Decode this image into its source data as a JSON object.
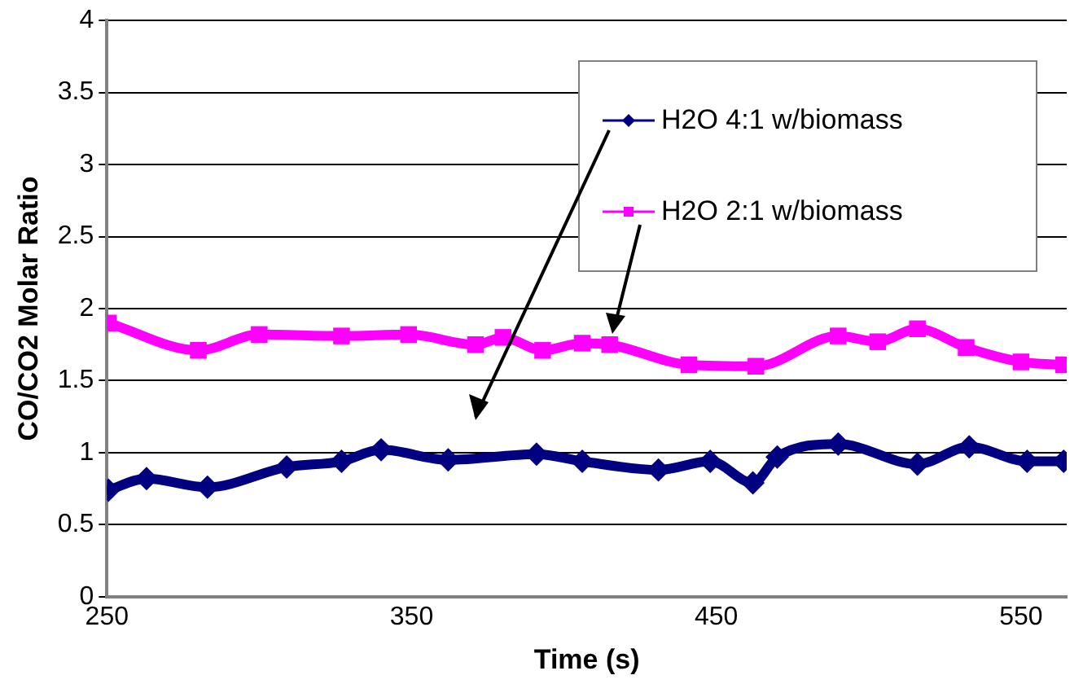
{
  "chart_data": {
    "type": "line",
    "xlabel": "Time (s)",
    "ylabel": "CO/CO2 Molar Ratio",
    "xlim": [
      250,
      565
    ],
    "xticks": [
      250,
      350,
      450,
      550
    ],
    "ylim": [
      0,
      4
    ],
    "yticks": [
      0,
      0.5,
      1,
      1.5,
      2,
      2.5,
      3,
      3.5,
      4
    ],
    "grid": "y",
    "legend": "top right",
    "line_style": "solid",
    "series": [
      {
        "name": "H2O 4:1 w/biomass",
        "color": "#000080",
        "marker": "diamond",
        "x": [
          250.5,
          263,
          283,
          309,
          327,
          340,
          362,
          391,
          406,
          431,
          448,
          462,
          470,
          490,
          516,
          533,
          552,
          564
        ],
        "values": [
          0.74,
          0.82,
          0.76,
          0.9,
          0.94,
          1.02,
          0.95,
          0.99,
          0.94,
          0.88,
          0.94,
          0.79,
          0.97,
          1.06,
          0.92,
          1.04,
          0.94,
          0.94
        ]
      },
      {
        "name": "H2O 2:1 w/biomass",
        "color": "#ff00ff",
        "marker": "square",
        "x": [
          250.5,
          280,
          300,
          327,
          349,
          371,
          380,
          393,
          406,
          415,
          441,
          463,
          490,
          503,
          516,
          532,
          550,
          564
        ],
        "values": [
          1.9,
          1.71,
          1.82,
          1.81,
          1.82,
          1.75,
          1.8,
          1.71,
          1.76,
          1.75,
          1.61,
          1.6,
          1.81,
          1.77,
          1.86,
          1.73,
          1.63,
          1.61
        ]
      }
    ]
  }
}
